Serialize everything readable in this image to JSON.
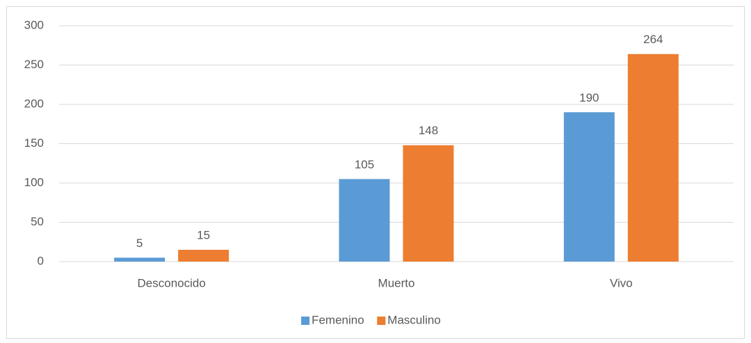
{
  "chart_data": {
    "type": "bar",
    "categories": [
      "Desconocido",
      "Muerto",
      "Vivo"
    ],
    "series": [
      {
        "name": "Femenino",
        "color": "#5b9bd5",
        "values": [
          5,
          105,
          190
        ]
      },
      {
        "name": "Masculino",
        "color": "#ed7d31",
        "values": [
          15,
          148,
          264
        ]
      }
    ],
    "ylim": [
      0,
      300
    ],
    "yticks": [
      0,
      50,
      100,
      150,
      200,
      250,
      300
    ],
    "grid": true,
    "legend": "bottom"
  }
}
